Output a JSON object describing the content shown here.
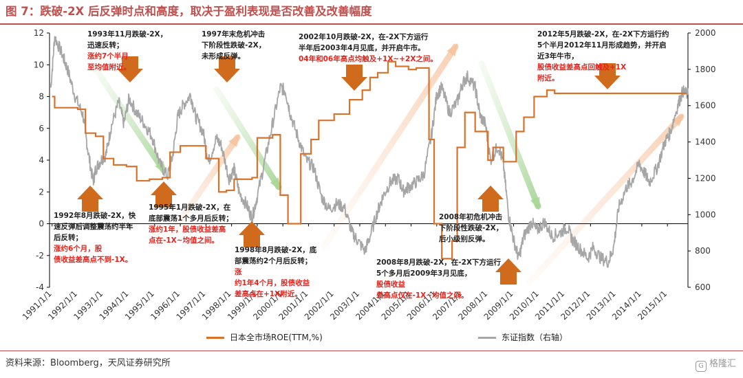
{
  "title": "图 7：跌破-2X 后反弹时点和高度，取决于盈利表现是否改善及改善幅度",
  "source": "资料来源：Bloomberg，天风证券研究所",
  "watermark": "格隆汇",
  "colors": {
    "roe": "#d8712a",
    "index": "#a6a6a6",
    "arrow_orange": "#d06a1d",
    "red_text": "#e8231b",
    "title": "#c0504d"
  },
  "chart_data": {
    "type": "line",
    "x_ticks": [
      "1991/1/1",
      "1992/1/1",
      "1993/1/1",
      "1994/1/1",
      "1995/1/1",
      "1996/1/1",
      "1997/1/1",
      "1998/1/1",
      "1999/1/1",
      "2000/1/1",
      "2001/1/1",
      "2002/1/1",
      "2003/1/1",
      "2004/1/1",
      "2005/1/1",
      "2006/1/1",
      "2007/1/1",
      "2008/1/1",
      "2009/1/1",
      "2010/1/1",
      "2011/1/1",
      "2012/1/1",
      "2013/1/1",
      "2014/1/1",
      "2015/1/1"
    ],
    "x_range": [
      1990.9,
      2015.8
    ],
    "y_left": {
      "min": -4,
      "max": 12,
      "ticks": [
        -4,
        -2,
        0,
        2,
        4,
        6,
        8,
        10,
        12
      ]
    },
    "y_right": {
      "min": 600,
      "max": 2000,
      "ticks": [
        600,
        800,
        1000,
        1200,
        1400,
        1600,
        1800,
        2000
      ]
    },
    "grid": false,
    "legend_position": "bottom",
    "series": [
      {
        "name": "日本全市场ROE(TTM,%)",
        "axis": "left",
        "step": true,
        "points": [
          [
            1991.0,
            8.0
          ],
          [
            1991.1,
            7.3
          ],
          [
            1992.0,
            7.2
          ],
          [
            1992.3,
            5.7
          ],
          [
            1992.7,
            5.5
          ],
          [
            1993.0,
            4.1
          ],
          [
            1993.4,
            3.7
          ],
          [
            1993.9,
            3.6
          ],
          [
            1994.3,
            2.7
          ],
          [
            1994.8,
            2.8
          ],
          [
            1995.3,
            2.9
          ],
          [
            1995.6,
            4.5
          ],
          [
            1996.0,
            4.9
          ],
          [
            1996.6,
            4.9
          ],
          [
            1997.0,
            4.1
          ],
          [
            1997.5,
            2.0
          ],
          [
            1997.8,
            2.1
          ],
          [
            1998.1,
            2.8
          ],
          [
            1998.8,
            2.9
          ],
          [
            1999.0,
            5.4
          ],
          [
            1999.6,
            5.6
          ],
          [
            1999.9,
            1.8
          ],
          [
            2000.2,
            0.0
          ],
          [
            2000.7,
            4.4
          ],
          [
            2001.1,
            5.3
          ],
          [
            2001.4,
            6.5
          ],
          [
            2002.0,
            6.9
          ],
          [
            2002.6,
            7.8
          ],
          [
            2003.1,
            8.4
          ],
          [
            2003.4,
            9.2
          ],
          [
            2003.7,
            9.5
          ],
          [
            2004.1,
            10.2
          ],
          [
            2004.4,
            9.9
          ],
          [
            2004.9,
            9.7
          ],
          [
            2005.2,
            9.8
          ],
          [
            2005.7,
            5.3
          ],
          [
            2005.9,
            0.0
          ],
          [
            2006.2,
            -2.2
          ],
          [
            2006.6,
            -1.1
          ],
          [
            2006.8,
            4.8
          ],
          [
            2007.1,
            7.0
          ],
          [
            2007.5,
            5.8
          ],
          [
            2008.0,
            4.0
          ],
          [
            2008.2,
            4.8
          ],
          [
            2008.6,
            3.9
          ],
          [
            2009.1,
            5.8
          ],
          [
            2009.4,
            6.7
          ],
          [
            2009.8,
            8.0
          ],
          [
            2010.3,
            8.4
          ],
          [
            2010.6,
            8.2
          ]
        ],
        "note": "approximate trace of the stepped ROE line"
      },
      {
        "name": "东证指数（右轴）",
        "axis": "right",
        "points": [
          [
            1990.95,
            1700
          ],
          [
            1991.1,
            1980
          ],
          [
            1991.4,
            1880
          ],
          [
            1991.6,
            1800
          ],
          [
            1991.9,
            1650
          ],
          [
            1992.2,
            1550
          ],
          [
            1992.4,
            1350
          ],
          [
            1992.6,
            1180
          ],
          [
            1992.7,
            1250
          ],
          [
            1992.9,
            1300
          ],
          [
            1993.1,
            1330
          ],
          [
            1993.3,
            1480
          ],
          [
            1993.6,
            1620
          ],
          [
            1993.8,
            1500
          ],
          [
            1994.0,
            1640
          ],
          [
            1994.3,
            1560
          ],
          [
            1994.6,
            1500
          ],
          [
            1994.9,
            1430
          ],
          [
            1995.2,
            1280
          ],
          [
            1995.5,
            1210
          ],
          [
            1995.7,
            1320
          ],
          [
            1995.9,
            1540
          ],
          [
            1996.1,
            1600
          ],
          [
            1996.4,
            1660
          ],
          [
            1996.6,
            1540
          ],
          [
            1996.9,
            1450
          ],
          [
            1997.1,
            1290
          ],
          [
            1997.4,
            1420
          ],
          [
            1997.6,
            1380
          ],
          [
            1997.9,
            1200
          ],
          [
            1998.1,
            1250
          ],
          [
            1998.3,
            1120
          ],
          [
            1998.6,
            1050
          ],
          [
            1998.8,
            980
          ],
          [
            1999.0,
            1100
          ],
          [
            1999.3,
            1300
          ],
          [
            1999.6,
            1500
          ],
          [
            1999.9,
            1700
          ],
          [
            2000.1,
            1680
          ],
          [
            2000.3,
            1550
          ],
          [
            2000.6,
            1420
          ],
          [
            2000.9,
            1300
          ],
          [
            2001.2,
            1260
          ],
          [
            2001.5,
            1100
          ],
          [
            2001.8,
            1030
          ],
          [
            2002.1,
            1060
          ],
          [
            2002.4,
            1040
          ],
          [
            2002.7,
            900
          ],
          [
            2002.9,
            860
          ],
          [
            2003.2,
            800
          ],
          [
            2003.4,
            880
          ],
          [
            2003.7,
            1020
          ],
          [
            2003.9,
            1100
          ],
          [
            2004.2,
            1180
          ],
          [
            2004.5,
            1200
          ],
          [
            2004.7,
            1130
          ],
          [
            2004.9,
            1150
          ],
          [
            2005.2,
            1180
          ],
          [
            2005.5,
            1220
          ],
          [
            2005.8,
            1440
          ],
          [
            2006.0,
            1660
          ],
          [
            2006.2,
            1700
          ],
          [
            2006.5,
            1560
          ],
          [
            2006.8,
            1620
          ],
          [
            2007.0,
            1720
          ],
          [
            2007.2,
            1760
          ],
          [
            2007.5,
            1700
          ],
          [
            2007.7,
            1540
          ],
          [
            2007.9,
            1500
          ],
          [
            2008.1,
            1300
          ],
          [
            2008.4,
            1380
          ],
          [
            2008.6,
            1280
          ],
          [
            2008.8,
            1000
          ],
          [
            2009.0,
            860
          ],
          [
            2009.2,
            760
          ],
          [
            2009.4,
            880
          ],
          [
            2009.7,
            960
          ],
          [
            2009.9,
            910
          ],
          [
            2010.2,
            960
          ],
          [
            2010.5,
            880
          ],
          [
            2010.8,
            900
          ],
          [
            2011.1,
            930
          ],
          [
            2011.3,
            860
          ],
          [
            2011.6,
            810
          ],
          [
            2011.9,
            760
          ],
          [
            2012.1,
            820
          ],
          [
            2012.4,
            760
          ],
          [
            2012.7,
            740
          ],
          [
            2012.9,
            820
          ],
          [
            2013.1,
            1040
          ],
          [
            2013.4,
            1150
          ],
          [
            2013.6,
            1180
          ],
          [
            2013.9,
            1280
          ],
          [
            2014.1,
            1230
          ],
          [
            2014.3,
            1180
          ],
          [
            2014.6,
            1260
          ],
          [
            2014.9,
            1400
          ],
          [
            2015.1,
            1450
          ],
          [
            2015.4,
            1600
          ],
          [
            2015.6,
            1680
          ],
          [
            2015.8,
            1660
          ]
        ],
        "note": "approximate trace of the daily index path"
      }
    ],
    "annotations": [
      {
        "id": "ann-1993-11",
        "lines": [
          "1993年11月跌破-2X，",
          "迅速反转；"
        ],
        "red_lines": [
          "涨约7个半月",
          "至均值附近。"
        ]
      },
      {
        "id": "ann-1997",
        "lines": [
          "1997年末危机冲击",
          "下阶段性跌破-2X，",
          "未形成反弹。"
        ],
        "red_lines": []
      },
      {
        "id": "ann-2002-10",
        "lines": [
          "2002年10月跌破-2X，在-2X下方运行",
          "半年后2003年4月见底，并开启牛市。"
        ],
        "red_lines": [
          "04年和06年高点均触及+1X~+2X之间。"
        ]
      },
      {
        "id": "ann-2012-05",
        "lines": [
          "2012年5月跌破-2X，在-2X下方运行约",
          "5个半月2012年11月形成趋势，并开启",
          "近3年牛市，"
        ],
        "red_lines": [
          "股债收益差高点回触及+1X",
          "附近。"
        ]
      },
      {
        "id": "ann-1992-08",
        "lines": [
          "1992年8月跌破-2X，快",
          "速反弹后调整震荡约半年",
          "后反转；"
        ],
        "red_lines": [
          "涨约6个月，股",
          "债收益差高点不到-1X。"
        ]
      },
      {
        "id": "ann-1995-01",
        "lines": [
          "1995年1月跌破-2X，在",
          "底部震荡1个多月后反转；"
        ],
        "red_lines": [
          "涨约1年，股债收益差高",
          "点在-1X~均值之间。"
        ]
      },
      {
        "id": "ann-1998-08",
        "lines": [
          "1998年8月跌破-2X，底",
          "部震荡约2个月后反转；"
        ],
        "red_lines": [
          "涨",
          "约1年4个月，股债收益",
          "差高点在+1X附近。"
        ]
      },
      {
        "id": "ann-2008-early",
        "lines": [
          "2008年初危机冲击",
          "下阶段性跌破-2X，",
          "后小级别反弹。"
        ],
        "red_lines": []
      },
      {
        "id": "ann-2008-08",
        "lines": [
          "2008年8月跌破-2X，在-2X下方运行",
          "5个多月后2009年3月见底，"
        ],
        "red_lines": [
          "股债收益",
          "差高点仅在-1X~均值之间。"
        ]
      }
    ]
  }
}
